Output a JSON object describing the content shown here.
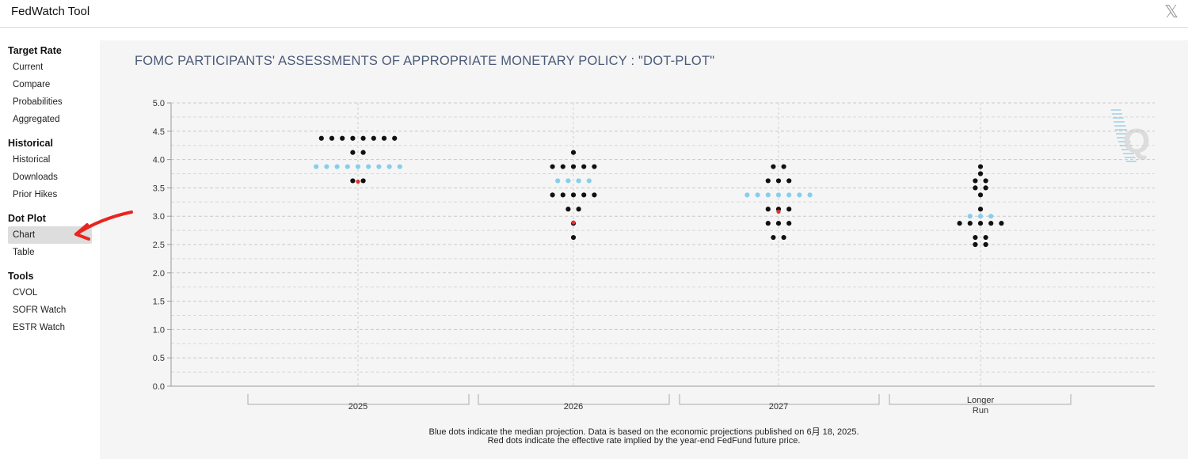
{
  "app": {
    "title": "FedWatch Tool",
    "close_icon": "x-logo-icon"
  },
  "sidebar": {
    "sections": [
      {
        "title": "Target Rate",
        "items": [
          "Current",
          "Compare",
          "Probabilities",
          "Aggregated"
        ]
      },
      {
        "title": "Historical",
        "items": [
          "Historical",
          "Downloads",
          "Prior Hikes"
        ]
      },
      {
        "title": "Dot Plot",
        "items": [
          "Chart",
          "Table"
        ],
        "active": "Chart"
      },
      {
        "title": "Tools",
        "items": [
          "CVOL",
          "SOFR Watch",
          "ESTR Watch"
        ]
      }
    ]
  },
  "chart_title": "FOMC PARTICIPANTS' ASSESSMENTS OF APPROPRIATE MONETARY POLICY : \"DOT-PLOT\"",
  "footnote": {
    "line1": "Blue dots indicate the median projection. Data is based on the economic projections published on 6月 18, 2025.",
    "line2": "Red dots indicate the effective rate implied by the year-end FedFund future price."
  },
  "colors": {
    "participant": "#111111",
    "median": "#87ceeb",
    "implied": "#e53030",
    "title": "#4b5a78",
    "annotation_arrow": "#e8251f"
  },
  "chart_data": {
    "type": "scatter",
    "title": "FOMC PARTICIPANTS' ASSESSMENTS OF APPROPRIATE MONETARY POLICY : \"DOT-PLOT\"",
    "ylim": [
      0,
      5
    ],
    "yticks": [
      "0.0",
      "0.5",
      "1.0",
      "1.5",
      "2.0",
      "2.5",
      "3.0",
      "3.5",
      "4.0",
      "4.5",
      "5.0"
    ],
    "grid": true,
    "categories": [
      {
        "label": "2025",
        "label_lines": [
          "2025"
        ],
        "dots": [
          {
            "rate": 4.375,
            "count": 8
          },
          {
            "rate": 4.125,
            "count": 2
          },
          {
            "rate": 3.625,
            "count": 2
          }
        ],
        "median": {
          "rate": 3.875,
          "count": 9
        },
        "implied": 3.61
      },
      {
        "label": "2026",
        "label_lines": [
          "2026"
        ],
        "dots": [
          {
            "rate": 4.125,
            "count": 1
          },
          {
            "rate": 3.875,
            "count": 5
          },
          {
            "rate": 3.375,
            "count": 5
          },
          {
            "rate": 3.125,
            "count": 2
          },
          {
            "rate": 2.875,
            "count": 1
          },
          {
            "rate": 2.625,
            "count": 1
          }
        ],
        "median": {
          "rate": 3.625,
          "count": 4
        },
        "implied": 2.89
      },
      {
        "label": "2027",
        "label_lines": [
          "2027"
        ],
        "dots": [
          {
            "rate": 3.875,
            "count": 2
          },
          {
            "rate": 3.625,
            "count": 3
          },
          {
            "rate": 3.125,
            "count": 3
          },
          {
            "rate": 2.875,
            "count": 3
          },
          {
            "rate": 2.625,
            "count": 2
          }
        ],
        "median": {
          "rate": 3.375,
          "count": 7
        },
        "implied": 3.08
      },
      {
        "label": "Longer Run",
        "label_lines": [
          "Longer",
          "Run"
        ],
        "dots": [
          {
            "rate": 3.875,
            "count": 1
          },
          {
            "rate": 3.75,
            "count": 1
          },
          {
            "rate": 3.625,
            "count": 2
          },
          {
            "rate": 3.5,
            "count": 2
          },
          {
            "rate": 3.375,
            "count": 1
          },
          {
            "rate": 3.125,
            "count": 1
          },
          {
            "rate": 2.875,
            "count": 5
          },
          {
            "rate": 2.625,
            "count": 2
          },
          {
            "rate": 2.5,
            "count": 2
          }
        ],
        "median": {
          "rate": 3.0,
          "count": 3
        },
        "implied": null
      }
    ]
  }
}
